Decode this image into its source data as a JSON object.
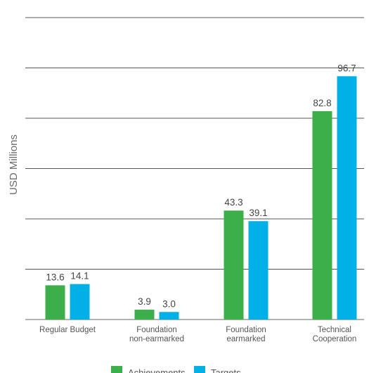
{
  "chart_data": {
    "type": "bar",
    "ylabel": "USD Millions",
    "xlabel": "",
    "ylim": [
      0,
      120
    ],
    "grid": true,
    "legend_position": "bottom-center",
    "categories": [
      [
        "Regular Budget"
      ],
      [
        "Foundation",
        "non-earmarked"
      ],
      [
        "Foundation",
        "earmarked"
      ],
      [
        "Technical",
        "Cooperation"
      ]
    ],
    "series": [
      {
        "name": "Achievements",
        "color": "#3daf4a",
        "values": [
          13.6,
          3.9,
          43.3,
          82.8
        ],
        "labels": [
          "13.6",
          "3.9",
          "43.3",
          "82.8"
        ]
      },
      {
        "name": "Targets",
        "color": "#00b0e6",
        "values": [
          14.1,
          3.0,
          39.1,
          96.7
        ],
        "labels": [
          "14.1",
          "3.0",
          "39.1",
          "96.7"
        ]
      }
    ]
  }
}
